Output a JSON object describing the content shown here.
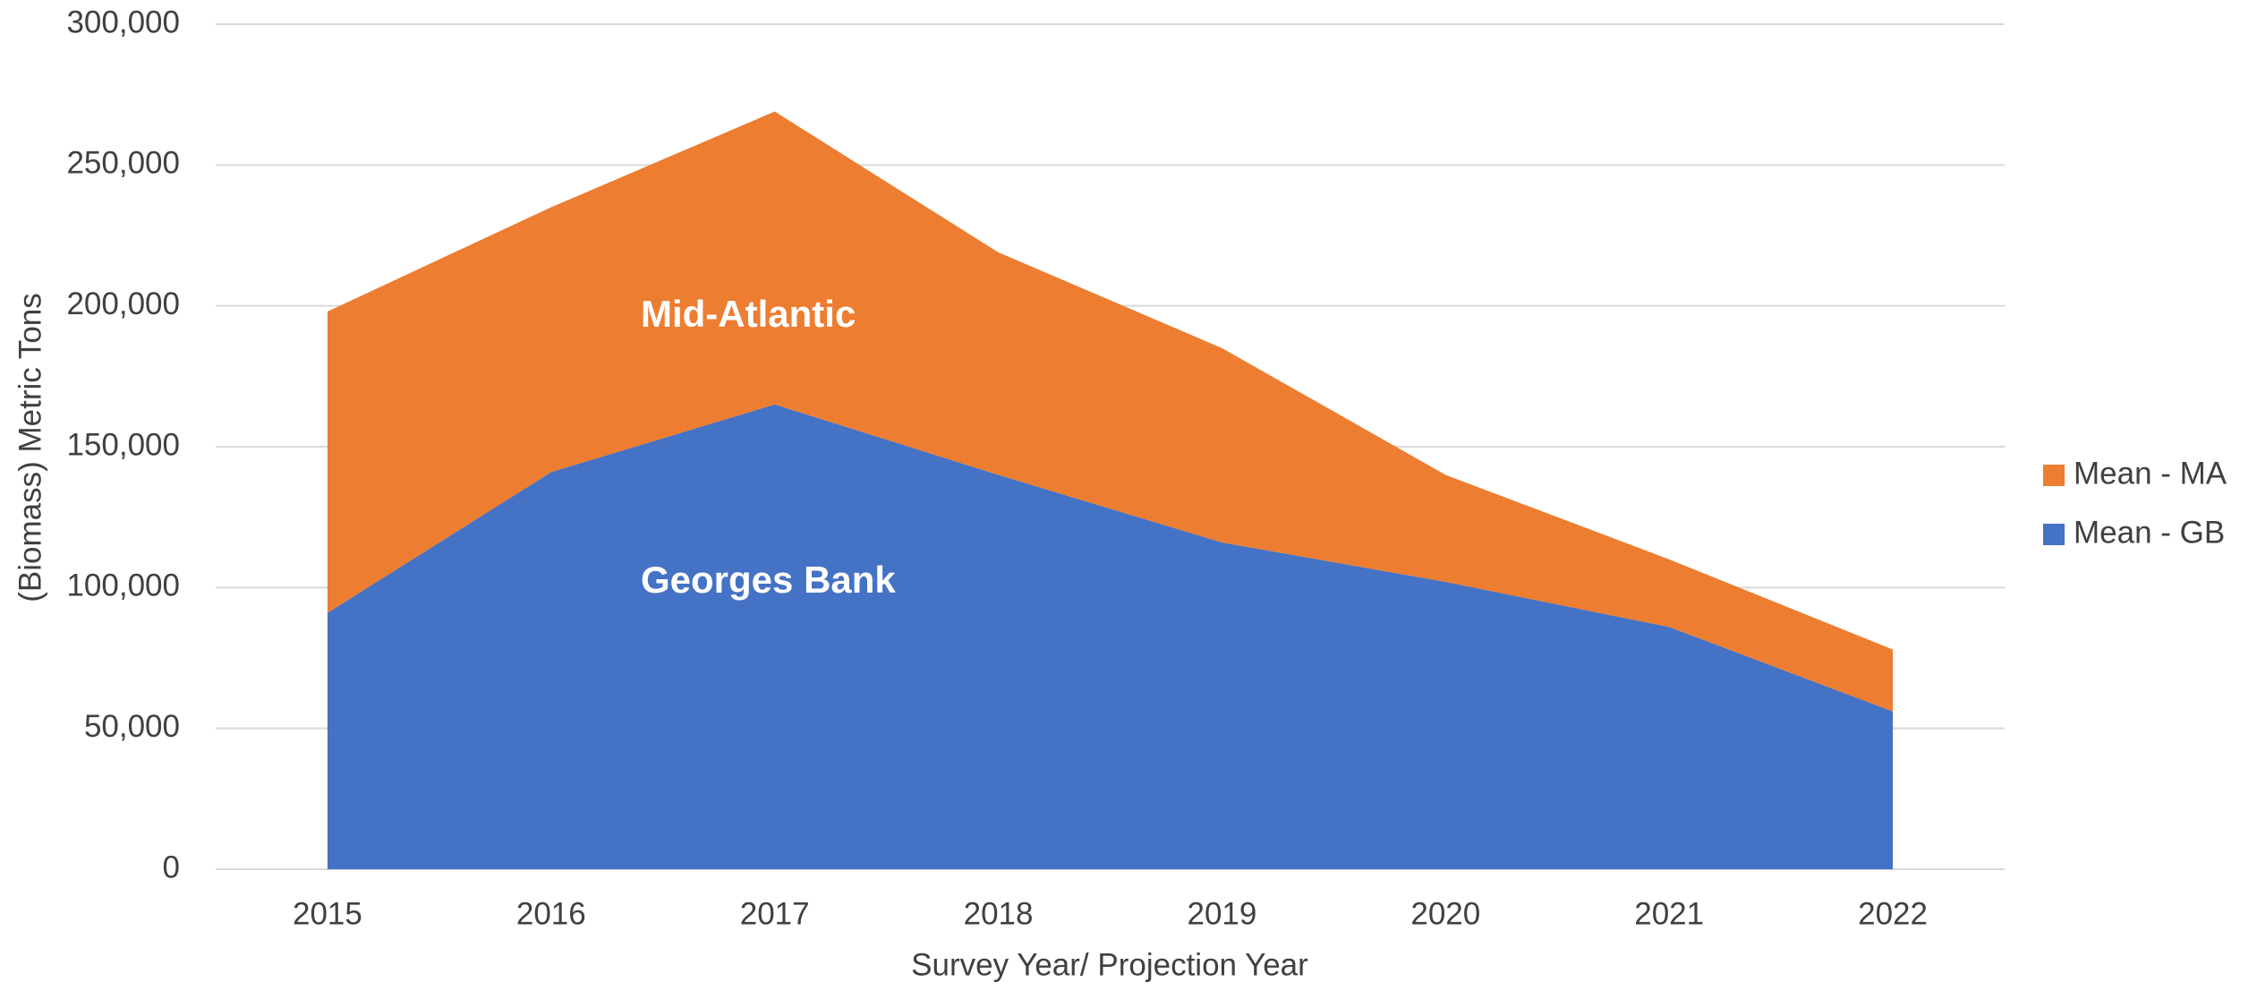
{
  "chart_data": {
    "type": "stacked_area",
    "x_label": "Survey Year/ Projection Year",
    "y_label": "(Biomass) Metric Tons",
    "categories": [
      "2015",
      "2016",
      "2017",
      "2018",
      "2019",
      "2020",
      "2021",
      "2022"
    ],
    "series": [
      {
        "name": "Mean - GB",
        "color": "#4472c4",
        "values": [
          91000,
          141000,
          165000,
          140000,
          116000,
          102000,
          86000,
          56000
        ]
      },
      {
        "name": "Mean - MA",
        "color": "#ed7d31",
        "values": [
          107000,
          94000,
          104000,
          79000,
          69000,
          38000,
          24000,
          22000
        ]
      }
    ],
    "annotations": [
      "Mid-Atlantic",
      "Georges Bank"
    ],
    "ylim": [
      0,
      300000
    ],
    "yticks": [
      {
        "value": 0,
        "label": "0"
      },
      {
        "value": 50000,
        "label": "50,000"
      },
      {
        "value": 100000,
        "label": "100,000"
      },
      {
        "value": 150000,
        "label": "150,000"
      },
      {
        "value": 200000,
        "label": "200,000"
      },
      {
        "value": 250000,
        "label": "250,000"
      },
      {
        "value": 300000,
        "label": "300,000"
      }
    ],
    "grid": true,
    "legend": "right"
  }
}
